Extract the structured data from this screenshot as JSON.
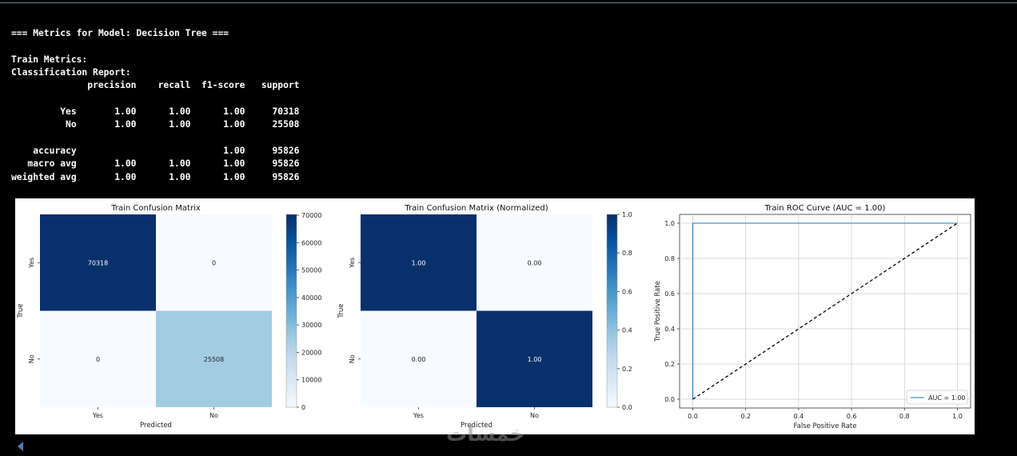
{
  "console": {
    "lines": [
      "",
      "=== Metrics for Model: Decision Tree ===",
      "",
      "Train Metrics:",
      "Classification Report:",
      "              precision    recall  f1-score   support",
      "",
      "         Yes       1.00      1.00      1.00     70318",
      "          No       1.00      1.00      1.00     25508",
      "",
      "    accuracy                           1.00     95826",
      "   macro avg       1.00      1.00      1.00     95826",
      "weighted avg       1.00      1.00      1.00     95826"
    ]
  },
  "watermark": "خمسات",
  "colors": {
    "dark_blue": "#08306b",
    "light_cell": "#f7fbff",
    "mid_cell": "#a6cde3",
    "roc_line": "#1f77b4",
    "diag_line": "#000000"
  },
  "chart_data": [
    {
      "type": "heatmap",
      "title": "Train Confusion Matrix",
      "xlabel": "Predicted",
      "ylabel": "True",
      "x_categories": [
        "Yes",
        "No"
      ],
      "y_categories": [
        "Yes",
        "No"
      ],
      "values": [
        [
          70318,
          0
        ],
        [
          0,
          25508
        ]
      ],
      "cell_labels": [
        [
          "70318",
          "0"
        ],
        [
          "0",
          "25508"
        ]
      ],
      "colorbar": {
        "min": 0,
        "max": 70318,
        "ticks": [
          0,
          10000,
          20000,
          30000,
          40000,
          50000,
          60000,
          70000
        ]
      },
      "colormap": "Blues"
    },
    {
      "type": "heatmap",
      "title": "Train Confusion Matrix (Normalized)",
      "xlabel": "Predicted",
      "ylabel": "True",
      "x_categories": [
        "Yes",
        "No"
      ],
      "y_categories": [
        "Yes",
        "No"
      ],
      "values": [
        [
          1.0,
          0.0
        ],
        [
          0.0,
          1.0
        ]
      ],
      "cell_labels": [
        [
          "1.00",
          "0.00"
        ],
        [
          "0.00",
          "1.00"
        ]
      ],
      "colorbar": {
        "min": 0,
        "max": 1,
        "ticks": [
          0.0,
          0.2,
          0.4,
          0.6,
          0.8,
          1.0
        ],
        "tick_labels": [
          "0.0",
          "0.2",
          "0.4",
          "0.6",
          "0.8",
          "1.0"
        ]
      },
      "colormap": "Blues"
    },
    {
      "type": "line",
      "title": "Train ROC Curve (AUC = 1.00)",
      "xlabel": "False Positive Rate",
      "ylabel": "True Positive Rate",
      "xlim": [
        -0.05,
        1.05
      ],
      "ylim": [
        -0.05,
        1.05
      ],
      "xticks": [
        "0.0",
        "0.2",
        "0.4",
        "0.6",
        "0.8",
        "1.0"
      ],
      "yticks": [
        "0.0",
        "0.2",
        "0.4",
        "0.6",
        "0.8",
        "1.0"
      ],
      "grid": true,
      "legend": "lower-right",
      "series": [
        {
          "name": "AUC = 1.00",
          "x": [
            0,
            0,
            1
          ],
          "y": [
            0,
            1,
            1
          ],
          "style": "solid"
        },
        {
          "x": [
            0,
            1
          ],
          "y": [
            0,
            1
          ],
          "style": "dashed"
        }
      ]
    }
  ]
}
